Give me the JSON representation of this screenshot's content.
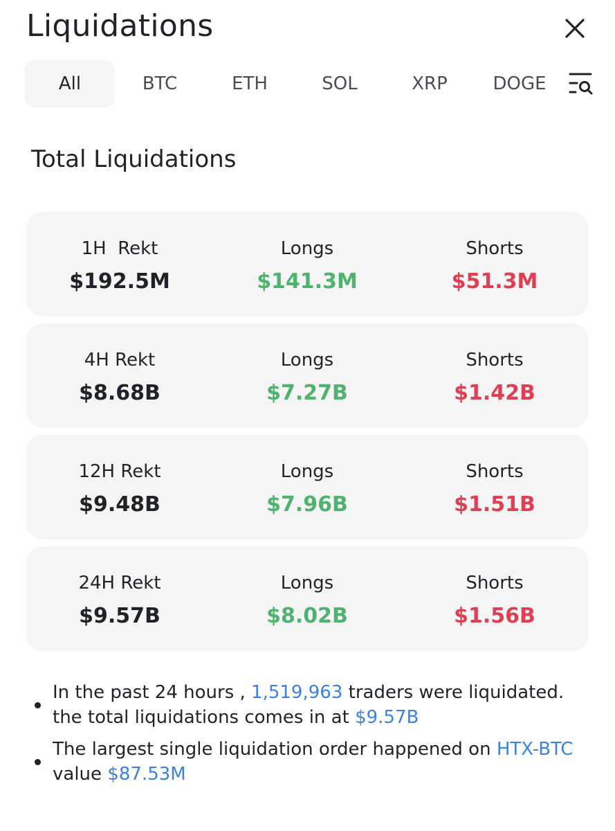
{
  "header": {
    "title": "Liquidations",
    "close_icon": "close-icon"
  },
  "tabs": [
    {
      "label": "All",
      "active": true
    },
    {
      "label": "BTC",
      "active": false
    },
    {
      "label": "ETH",
      "active": false
    },
    {
      "label": "SOL",
      "active": false
    },
    {
      "label": "XRP",
      "active": false
    },
    {
      "label": "DOGE",
      "active": false
    }
  ],
  "filter_icon": "filter-search-icon",
  "section": {
    "title": "Total Liquidations"
  },
  "cards": [
    {
      "period_label": "1H  Rekt",
      "total": "$192.5M",
      "longs_label": "Longs",
      "longs": "$141.3M",
      "shorts_label": "Shorts",
      "shorts": "$51.3M"
    },
    {
      "period_label": "4H Rekt",
      "total": "$8.68B",
      "longs_label": "Longs",
      "longs": "$7.27B",
      "shorts_label": "Shorts",
      "shorts": "$1.42B"
    },
    {
      "period_label": "12H Rekt",
      "total": "$9.48B",
      "longs_label": "Longs",
      "longs": "$7.96B",
      "shorts_label": "Shorts",
      "shorts": "$1.51B"
    },
    {
      "period_label": "24H Rekt",
      "total": "$9.57B",
      "longs_label": "Longs",
      "longs": "$8.02B",
      "shorts_label": "Shorts",
      "shorts": "$1.56B"
    }
  ],
  "notes": [
    {
      "part1": "In the past 24 hours , ",
      "traders_count": "1,519,963",
      "part2": " traders were liquidated. the total liquidations comes in at ",
      "total_value": "$9.57B"
    },
    {
      "part1": "The largest single liquidation order happened on ",
      "pair": "HTX-BTC",
      "part2": " value ",
      "order_value": "$87.53M"
    }
  ],
  "colors": {
    "long": "#4fb36f",
    "short": "#de3f52",
    "link": "#3b82e0",
    "card_bg": "#f5f5f6"
  }
}
